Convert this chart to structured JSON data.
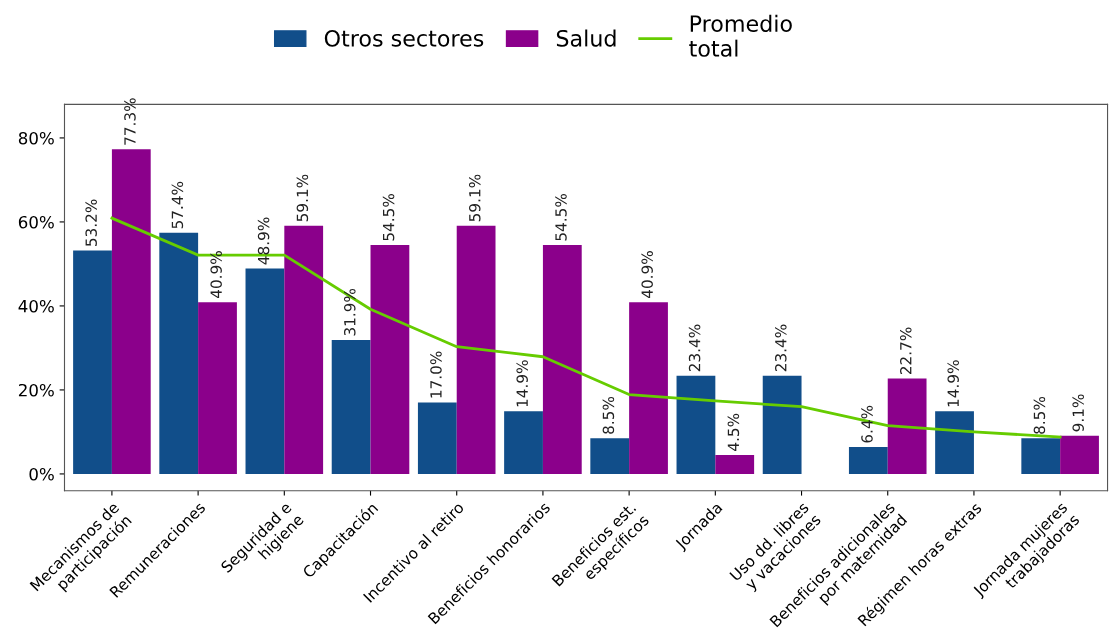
{
  "chart_data": {
    "type": "bar",
    "categories": [
      "Mecanismos de\nparticipación",
      "Remuneraciones",
      "Seguridad e\nhigiene",
      "Capacitación",
      "Incentivo al retiro",
      "Beneficios honorarios",
      "Beneficios est.\nespecíficos",
      "Jornada",
      "Uso dd. libres\ny vacaciones",
      "Beneficios adicionales\npor maternidad",
      "Régimen horas extras",
      "Jornada mujeres\ntrabajadoras"
    ],
    "series": [
      {
        "name": "Otros sectores",
        "color": "#114e8a",
        "values": [
          53.2,
          57.4,
          48.9,
          31.9,
          17.0,
          14.9,
          8.5,
          23.4,
          23.4,
          6.4,
          14.9,
          8.5
        ],
        "value_labels": [
          "53.2%",
          "57.4%",
          "48.9%",
          "31.9%",
          "17.0%",
          "14.9%",
          "8.5%",
          "23.4%",
          "23.4%",
          "6.4%",
          "14.9%",
          "8.5%"
        ]
      },
      {
        "name": "Salud",
        "color": "#8b008b",
        "values": [
          77.3,
          40.9,
          59.1,
          54.5,
          59.1,
          54.5,
          40.9,
          4.5,
          null,
          22.7,
          null,
          9.1
        ],
        "value_labels": [
          "77.3%",
          "40.9%",
          "59.1%",
          "54.5%",
          "59.1%",
          "54.5%",
          "40.9%",
          "4.5%",
          null,
          "22.7%",
          null,
          "9.1%"
        ]
      },
      {
        "name": "Promedio\ntotal",
        "type": "line",
        "color": "#66cc00",
        "values": [
          60.9,
          52.1,
          52.1,
          39.2,
          30.3,
          27.9,
          18.9,
          17.4,
          16.0,
          11.5,
          10.0,
          8.8
        ]
      }
    ],
    "ylim": [
      -4,
      88
    ],
    "yticks": [
      {
        "value": 0,
        "label": "0%"
      },
      {
        "value": 20,
        "label": "20%"
      },
      {
        "value": 40,
        "label": "40%"
      },
      {
        "value": 60,
        "label": "60%"
      },
      {
        "value": 80,
        "label": "80%"
      }
    ],
    "grid": false,
    "legend": "top",
    "marker": "none"
  }
}
